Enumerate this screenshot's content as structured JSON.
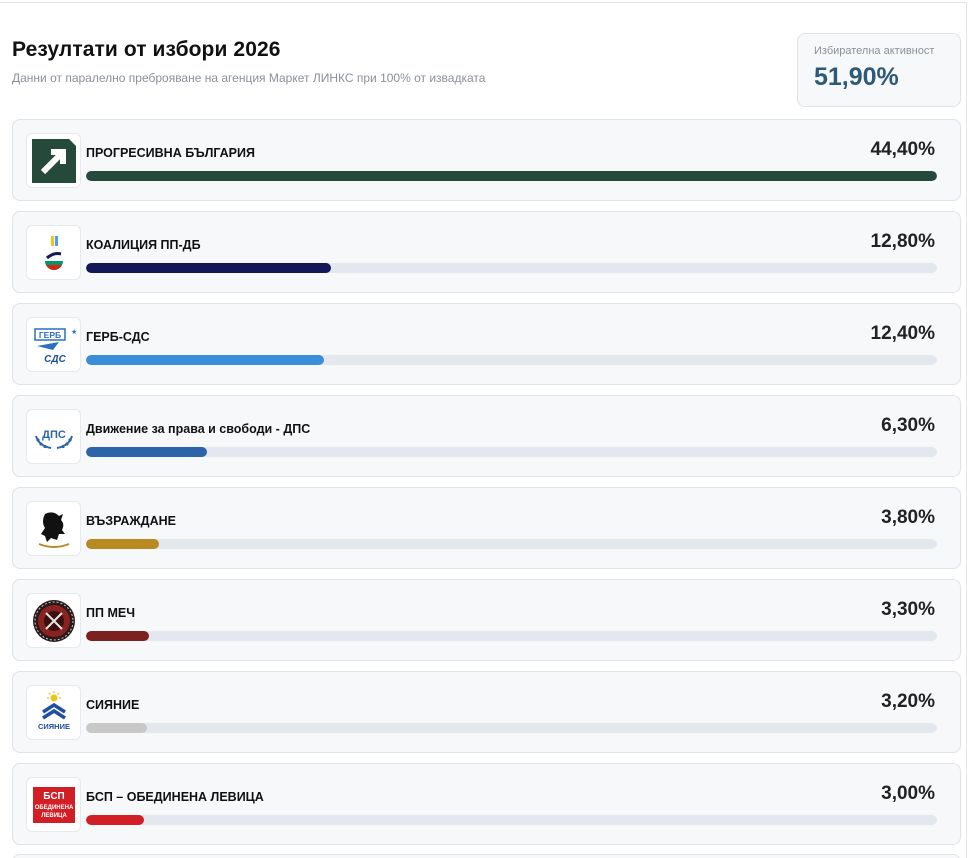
{
  "header": {
    "title": "Резултати от избори 2026",
    "subtitle": "Данни от паралелно преброяване на агенция Маркет ЛИНКС при 100% от извадката"
  },
  "turnout": {
    "label": "Избирателна активност",
    "value": "51,90%",
    "color": "#2c5a7a"
  },
  "parties": [
    {
      "name": "ПРОГРЕСИВНА БЪЛГАРИЯ",
      "percent_label": "44,40%",
      "share": 0.444,
      "bar_color": "#254a3c",
      "logo_icon": "progressive-bulgaria-logo-icon"
    },
    {
      "name": "КОАЛИЦИЯ ПП-ДБ",
      "percent_label": "12,80%",
      "share": 0.128,
      "bar_color": "#141758",
      "logo_icon": "pp-db-logo-icon"
    },
    {
      "name": "ГЕРБ-СДС",
      "percent_label": "12,40%",
      "share": 0.124,
      "bar_color": "#3a8dd8",
      "logo_icon": "gerb-sds-logo-icon",
      "logo_text": "ГЕРБ СДС"
    },
    {
      "name": "Движение за права и свободи - ДПС",
      "percent_label": "6,30%",
      "share": 0.063,
      "bar_color": "#2d63a8",
      "logo_icon": "dps-logo-icon",
      "logo_text": "ДПС"
    },
    {
      "name": "ВЪЗРАЖДАНЕ",
      "percent_label": "3,80%",
      "share": 0.038,
      "bar_color": "#b88a22",
      "logo_icon": "vazrazhdane-lion-logo-icon"
    },
    {
      "name": "ПП МЕЧ",
      "percent_label": "3,30%",
      "share": 0.033,
      "bar_color": "#7d2020",
      "logo_icon": "mech-logo-icon"
    },
    {
      "name": "СИЯНИЕ",
      "percent_label": "3,20%",
      "share": 0.032,
      "bar_color": "#c8c8c8",
      "logo_icon": "siyanie-logo-icon",
      "logo_text": "СИЯНИЕ"
    },
    {
      "name": "БСП – ОБЕДИНЕНА ЛЕВИЦА",
      "percent_label": "3,00%",
      "share": 0.03,
      "bar_color": "#d21f26",
      "logo_icon": "bsp-logo-icon",
      "logo_text": "БСП ОБЕДИНЕНА ЛЕВИЦА"
    }
  ],
  "bar_scale_max": 0.444
}
